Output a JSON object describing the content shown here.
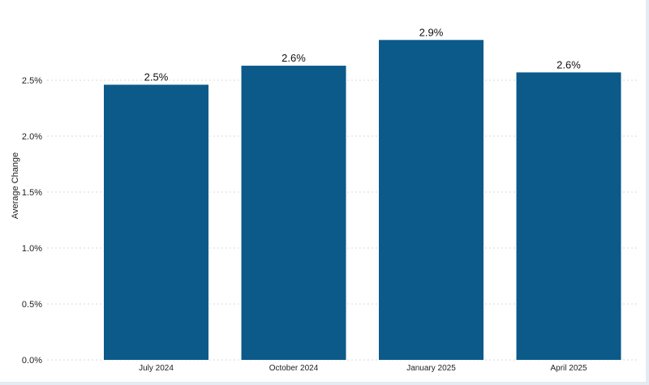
{
  "chart_data": {
    "type": "bar",
    "categories": [
      "July 2024",
      "October 2024",
      "January 2025",
      "April 2025"
    ],
    "values": [
      2.46,
      2.63,
      2.86,
      2.57
    ],
    "value_labels": [
      "2.5%",
      "2.6%",
      "2.9%",
      "2.6%"
    ],
    "title": "",
    "xlabel": "",
    "ylabel": "Average Change",
    "ylim": [
      0,
      3.0
    ],
    "yticks": [
      0,
      0.5,
      1.0,
      1.5,
      2.0,
      2.5
    ],
    "ytick_labels": [
      "0.0%",
      "0.5%",
      "1.0%",
      "1.5%",
      "2.0%",
      "2.5%"
    ],
    "grid": "horizontal dotted",
    "bar_color": "#0b5a8a"
  }
}
